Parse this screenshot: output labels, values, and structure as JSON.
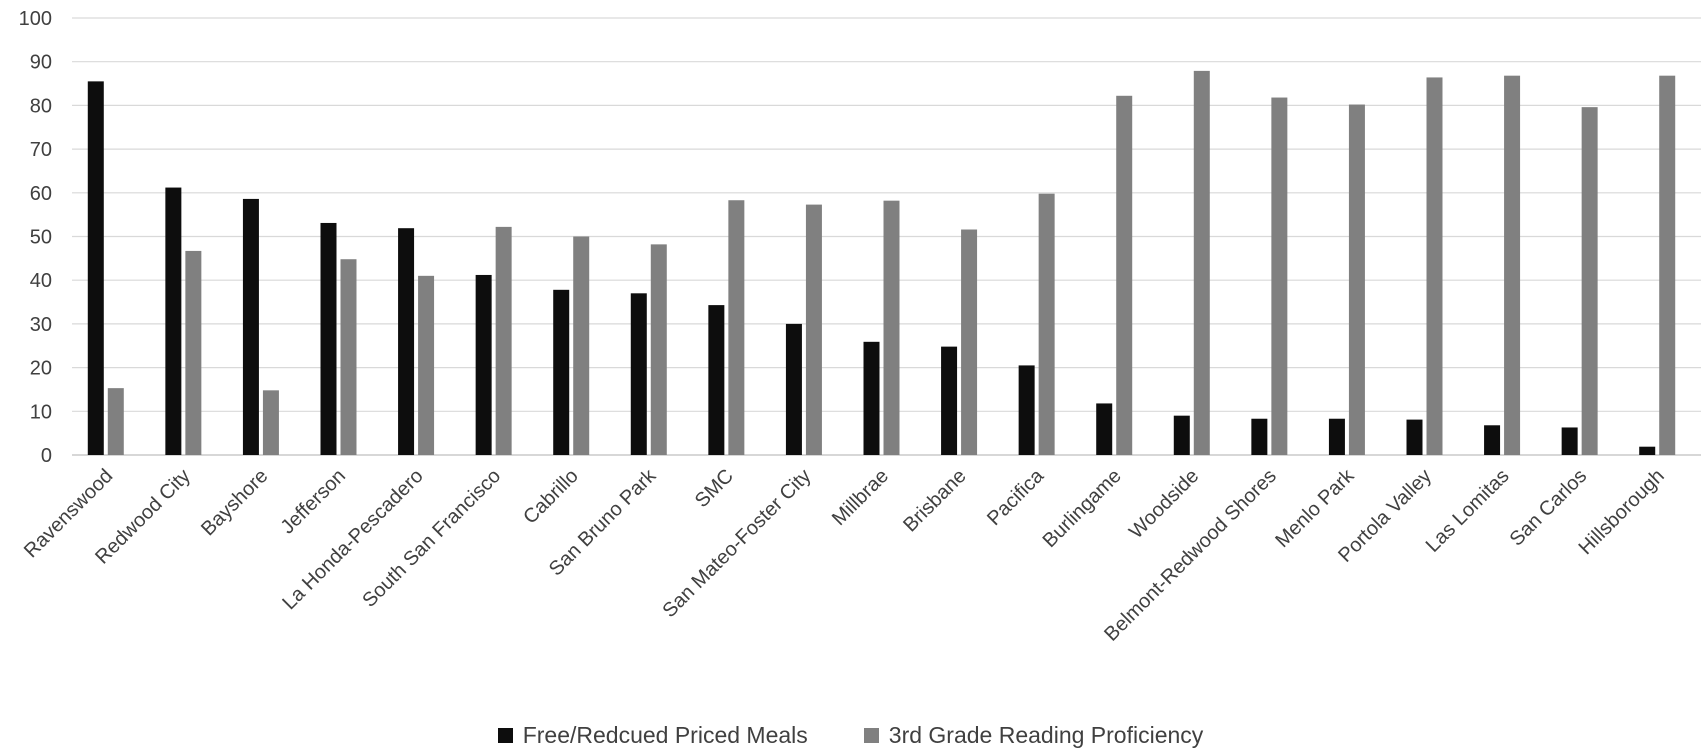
{
  "chart_data": {
    "type": "bar",
    "categories": [
      "Ravenswood",
      "Redwood City",
      "Bayshore",
      "Jefferson",
      "La Honda-Pescadero",
      "South San Francisco",
      "Cabrillo",
      "San Bruno Park",
      "SMC",
      "San Mateo-Foster City",
      "Millbrae",
      "Brisbane",
      "Pacifica",
      "Burlingame",
      "Woodside",
      "Belmont-Redwood Shores",
      "Menlo Park",
      "Portola Valley",
      "Las Lomitas",
      "San Carlos",
      "Hillsborough"
    ],
    "series": [
      {
        "name": "Free/Redcued Priced Meals",
        "color": "#0d0d0d",
        "values": [
          85.5,
          61.2,
          58.6,
          53.1,
          51.9,
          41.2,
          37.8,
          37.0,
          34.3,
          30.0,
          25.9,
          24.8,
          20.5,
          11.8,
          9.0,
          8.3,
          8.3,
          8.1,
          6.8,
          6.3,
          1.9
        ]
      },
      {
        "name": "3rd Grade Reading Proficiency",
        "color": "#808080",
        "values": [
          15.3,
          46.7,
          14.8,
          44.8,
          41.0,
          52.2,
          50.0,
          48.2,
          58.3,
          57.3,
          58.2,
          51.6,
          59.8,
          82.2,
          87.9,
          81.8,
          80.2,
          86.4,
          86.8,
          79.6,
          86.8
        ]
      }
    ],
    "ylim": [
      0,
      100
    ],
    "yticks": [
      0,
      10,
      20,
      30,
      40,
      50,
      60,
      70,
      80,
      90,
      100
    ],
    "grid": true,
    "legend": "bottom"
  }
}
